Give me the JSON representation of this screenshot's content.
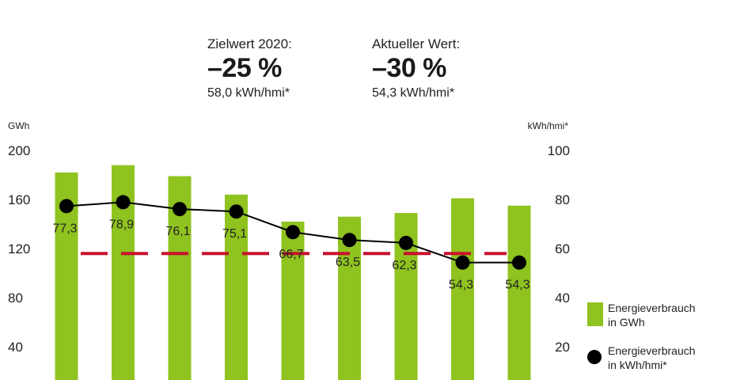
{
  "kpis": [
    {
      "label": "Zielwert 2020:",
      "value": "–25 %",
      "sub": "58,0 kWh/hmi*"
    },
    {
      "label": "Aktueller Wert:",
      "value": "–30 %",
      "sub": "54,3 kWh/hmi*"
    }
  ],
  "colors": {
    "bar": "#8fc31f",
    "line": "#000000",
    "target": "#c8102e"
  },
  "chart_data": {
    "type": "bar",
    "left_axis": {
      "unit": "GWh",
      "ticks": [
        "200",
        "160",
        "120",
        "80",
        "40"
      ],
      "ylim": [
        0,
        200
      ]
    },
    "right_axis": {
      "unit": "kWh/hmi*",
      "ticks": [
        "100",
        "80",
        "60",
        "40",
        "20"
      ],
      "ylim": [
        0,
        100
      ]
    },
    "series": [
      {
        "name": "Energieverbrauch in GWh",
        "type": "bar",
        "axis": "left",
        "values": [
          182,
          188,
          179,
          164,
          142,
          146,
          149,
          161,
          155
        ]
      },
      {
        "name": "Energieverbrauch in kWh/hmi*",
        "type": "line",
        "axis": "right",
        "values": [
          77.3,
          78.9,
          76.1,
          75.1,
          66.7,
          63.5,
          62.3,
          54.3,
          54.3
        ],
        "labels": [
          "77,3",
          "78,9",
          "76,1",
          "75,1",
          "66,7",
          "63,5",
          "62,3",
          "54,3",
          "54,3"
        ]
      }
    ],
    "target_line": {
      "axis": "right",
      "value": 58.0,
      "style": "dashed"
    }
  },
  "legend": {
    "bars": {
      "line1": "Energieverbrauch",
      "line2": "in GWh"
    },
    "dots": {
      "line1": "Energieverbrauch",
      "line2": "in kWh/hmi*"
    }
  }
}
